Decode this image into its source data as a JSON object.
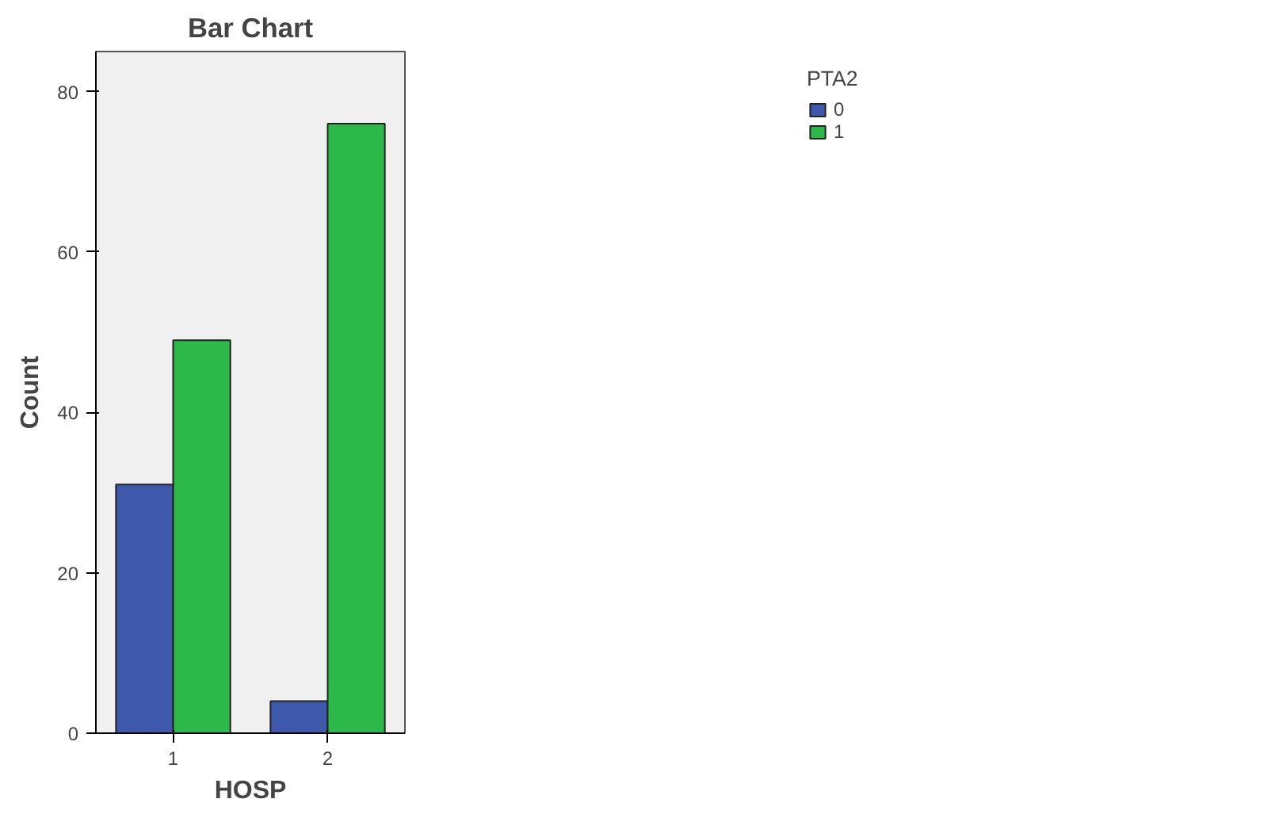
{
  "chart_data": {
    "type": "bar",
    "title": "Bar Chart",
    "xlabel": "HOSP",
    "ylabel": "Count",
    "legend_title": "PTA2",
    "categories": [
      "1",
      "2"
    ],
    "series": [
      {
        "name": "0",
        "color": "#3e58ac",
        "values": [
          31,
          4
        ]
      },
      {
        "name": "1",
        "color": "#2db84a",
        "values": [
          49,
          76
        ]
      }
    ],
    "ylim": [
      0,
      85
    ],
    "yticks": [
      0,
      20,
      40,
      60,
      80
    ],
    "grid": false,
    "legend": "top right"
  }
}
